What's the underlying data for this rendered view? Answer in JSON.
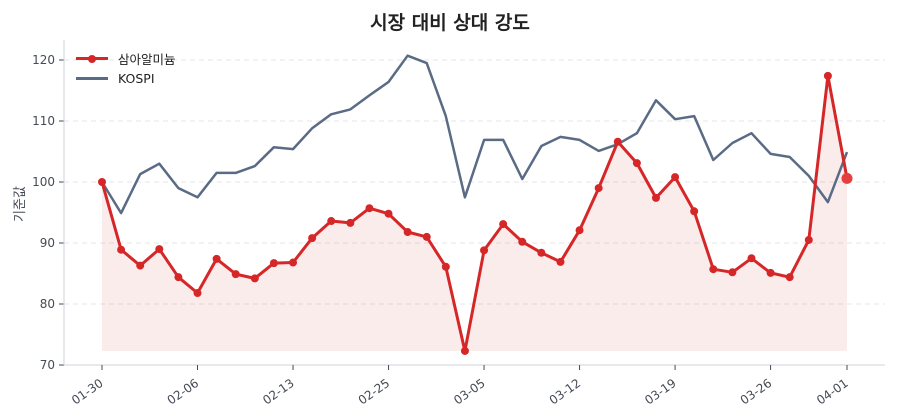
{
  "chart_data": {
    "type": "line",
    "title": "시장 대비 상대 강도",
    "xlabel": "",
    "ylabel": "기준값",
    "ylim": [
      70,
      123
    ],
    "yticks": [
      70,
      80,
      90,
      100,
      110,
      120
    ],
    "xtick_labels": [
      "01-30",
      "02-06",
      "02-13",
      "02-25",
      "03-05",
      "03-12",
      "03-19",
      "03-26",
      "04-01"
    ],
    "xtick_indices": [
      0,
      5,
      10,
      15,
      20,
      25,
      30,
      35,
      39
    ],
    "grid": {
      "y": true,
      "x": false,
      "style": "dashed"
    },
    "legend_position": "upper left",
    "n_points": 40,
    "series": [
      {
        "name": "삼아알미늄",
        "color": "#d62728",
        "marker": "circle",
        "fill": true,
        "values": [
          100.0,
          88.9,
          86.3,
          89.0,
          84.4,
          81.8,
          87.4,
          84.9,
          84.2,
          86.7,
          86.8,
          90.8,
          93.6,
          93.3,
          95.7,
          94.8,
          91.8,
          91.0,
          86.1,
          72.3,
          88.8,
          93.1,
          90.2,
          88.4,
          86.9,
          92.1,
          99.0,
          106.6,
          103.1,
          97.4,
          100.8,
          95.2,
          85.7,
          85.2,
          87.5,
          85.1,
          84.4,
          90.5,
          117.4,
          100.6
        ]
      },
      {
        "name": "KOSPI",
        "color": "#5a6b85",
        "marker": "none",
        "fill": false,
        "values": [
          100.0,
          94.9,
          101.3,
          103.0,
          99.0,
          97.5,
          101.5,
          101.5,
          102.6,
          105.7,
          105.4,
          108.8,
          111.1,
          111.9,
          114.2,
          116.4,
          120.7,
          119.5,
          110.8,
          97.5,
          106.9,
          106.9,
          100.5,
          105.9,
          107.4,
          106.9,
          105.1,
          106.2,
          108.0,
          113.4,
          110.3,
          110.8,
          103.6,
          106.4,
          108.0,
          104.6,
          104.1,
          101.0,
          96.7,
          104.9
        ]
      }
    ]
  },
  "legend": {
    "items": [
      {
        "label": "삼아알미늄",
        "color": "#d62728"
      },
      {
        "label": "KOSPI",
        "color": "#5a6b85"
      }
    ]
  }
}
